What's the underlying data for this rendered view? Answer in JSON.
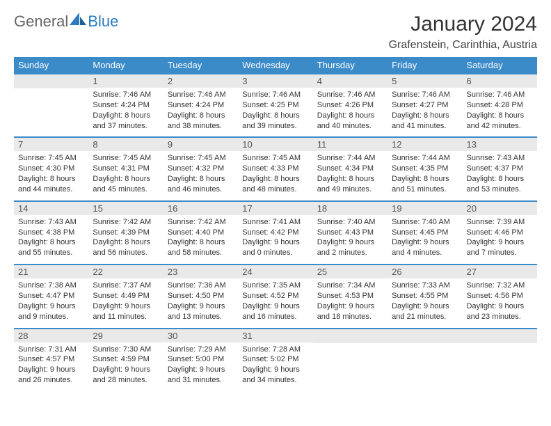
{
  "brand": {
    "part1": "General",
    "part2": "Blue"
  },
  "title": "January 2024",
  "location": "Grafenstein, Carinthia, Austria",
  "colors": {
    "header_bg": "#3b8bc9",
    "header_text": "#ffffff",
    "daynum_bg": "#e9e9e9",
    "row_border": "#3b8bc9",
    "text": "#333333",
    "background": "#ffffff"
  },
  "weekdays": [
    "Sunday",
    "Monday",
    "Tuesday",
    "Wednesday",
    "Thursday",
    "Friday",
    "Saturday"
  ],
  "weeks": [
    [
      {
        "n": "",
        "lines": [
          "",
          "",
          "",
          ""
        ]
      },
      {
        "n": "1",
        "lines": [
          "Sunrise: 7:46 AM",
          "Sunset: 4:24 PM",
          "Daylight: 8 hours",
          "and 37 minutes."
        ]
      },
      {
        "n": "2",
        "lines": [
          "Sunrise: 7:46 AM",
          "Sunset: 4:24 PM",
          "Daylight: 8 hours",
          "and 38 minutes."
        ]
      },
      {
        "n": "3",
        "lines": [
          "Sunrise: 7:46 AM",
          "Sunset: 4:25 PM",
          "Daylight: 8 hours",
          "and 39 minutes."
        ]
      },
      {
        "n": "4",
        "lines": [
          "Sunrise: 7:46 AM",
          "Sunset: 4:26 PM",
          "Daylight: 8 hours",
          "and 40 minutes."
        ]
      },
      {
        "n": "5",
        "lines": [
          "Sunrise: 7:46 AM",
          "Sunset: 4:27 PM",
          "Daylight: 8 hours",
          "and 41 minutes."
        ]
      },
      {
        "n": "6",
        "lines": [
          "Sunrise: 7:46 AM",
          "Sunset: 4:28 PM",
          "Daylight: 8 hours",
          "and 42 minutes."
        ]
      }
    ],
    [
      {
        "n": "7",
        "lines": [
          "Sunrise: 7:45 AM",
          "Sunset: 4:30 PM",
          "Daylight: 8 hours",
          "and 44 minutes."
        ]
      },
      {
        "n": "8",
        "lines": [
          "Sunrise: 7:45 AM",
          "Sunset: 4:31 PM",
          "Daylight: 8 hours",
          "and 45 minutes."
        ]
      },
      {
        "n": "9",
        "lines": [
          "Sunrise: 7:45 AM",
          "Sunset: 4:32 PM",
          "Daylight: 8 hours",
          "and 46 minutes."
        ]
      },
      {
        "n": "10",
        "lines": [
          "Sunrise: 7:45 AM",
          "Sunset: 4:33 PM",
          "Daylight: 8 hours",
          "and 48 minutes."
        ]
      },
      {
        "n": "11",
        "lines": [
          "Sunrise: 7:44 AM",
          "Sunset: 4:34 PM",
          "Daylight: 8 hours",
          "and 49 minutes."
        ]
      },
      {
        "n": "12",
        "lines": [
          "Sunrise: 7:44 AM",
          "Sunset: 4:35 PM",
          "Daylight: 8 hours",
          "and 51 minutes."
        ]
      },
      {
        "n": "13",
        "lines": [
          "Sunrise: 7:43 AM",
          "Sunset: 4:37 PM",
          "Daylight: 8 hours",
          "and 53 minutes."
        ]
      }
    ],
    [
      {
        "n": "14",
        "lines": [
          "Sunrise: 7:43 AM",
          "Sunset: 4:38 PM",
          "Daylight: 8 hours",
          "and 55 minutes."
        ]
      },
      {
        "n": "15",
        "lines": [
          "Sunrise: 7:42 AM",
          "Sunset: 4:39 PM",
          "Daylight: 8 hours",
          "and 56 minutes."
        ]
      },
      {
        "n": "16",
        "lines": [
          "Sunrise: 7:42 AM",
          "Sunset: 4:40 PM",
          "Daylight: 8 hours",
          "and 58 minutes."
        ]
      },
      {
        "n": "17",
        "lines": [
          "Sunrise: 7:41 AM",
          "Sunset: 4:42 PM",
          "Daylight: 9 hours",
          "and 0 minutes."
        ]
      },
      {
        "n": "18",
        "lines": [
          "Sunrise: 7:40 AM",
          "Sunset: 4:43 PM",
          "Daylight: 9 hours",
          "and 2 minutes."
        ]
      },
      {
        "n": "19",
        "lines": [
          "Sunrise: 7:40 AM",
          "Sunset: 4:45 PM",
          "Daylight: 9 hours",
          "and 4 minutes."
        ]
      },
      {
        "n": "20",
        "lines": [
          "Sunrise: 7:39 AM",
          "Sunset: 4:46 PM",
          "Daylight: 9 hours",
          "and 7 minutes."
        ]
      }
    ],
    [
      {
        "n": "21",
        "lines": [
          "Sunrise: 7:38 AM",
          "Sunset: 4:47 PM",
          "Daylight: 9 hours",
          "and 9 minutes."
        ]
      },
      {
        "n": "22",
        "lines": [
          "Sunrise: 7:37 AM",
          "Sunset: 4:49 PM",
          "Daylight: 9 hours",
          "and 11 minutes."
        ]
      },
      {
        "n": "23",
        "lines": [
          "Sunrise: 7:36 AM",
          "Sunset: 4:50 PM",
          "Daylight: 9 hours",
          "and 13 minutes."
        ]
      },
      {
        "n": "24",
        "lines": [
          "Sunrise: 7:35 AM",
          "Sunset: 4:52 PM",
          "Daylight: 9 hours",
          "and 16 minutes."
        ]
      },
      {
        "n": "25",
        "lines": [
          "Sunrise: 7:34 AM",
          "Sunset: 4:53 PM",
          "Daylight: 9 hours",
          "and 18 minutes."
        ]
      },
      {
        "n": "26",
        "lines": [
          "Sunrise: 7:33 AM",
          "Sunset: 4:55 PM",
          "Daylight: 9 hours",
          "and 21 minutes."
        ]
      },
      {
        "n": "27",
        "lines": [
          "Sunrise: 7:32 AM",
          "Sunset: 4:56 PM",
          "Daylight: 9 hours",
          "and 23 minutes."
        ]
      }
    ],
    [
      {
        "n": "28",
        "lines": [
          "Sunrise: 7:31 AM",
          "Sunset: 4:57 PM",
          "Daylight: 9 hours",
          "and 26 minutes."
        ]
      },
      {
        "n": "29",
        "lines": [
          "Sunrise: 7:30 AM",
          "Sunset: 4:59 PM",
          "Daylight: 9 hours",
          "and 28 minutes."
        ]
      },
      {
        "n": "30",
        "lines": [
          "Sunrise: 7:29 AM",
          "Sunset: 5:00 PM",
          "Daylight: 9 hours",
          "and 31 minutes."
        ]
      },
      {
        "n": "31",
        "lines": [
          "Sunrise: 7:28 AM",
          "Sunset: 5:02 PM",
          "Daylight: 9 hours",
          "and 34 minutes."
        ]
      },
      {
        "n": "",
        "lines": [
          "",
          "",
          "",
          ""
        ]
      },
      {
        "n": "",
        "lines": [
          "",
          "",
          "",
          ""
        ]
      },
      {
        "n": "",
        "lines": [
          "",
          "",
          "",
          ""
        ]
      }
    ]
  ]
}
